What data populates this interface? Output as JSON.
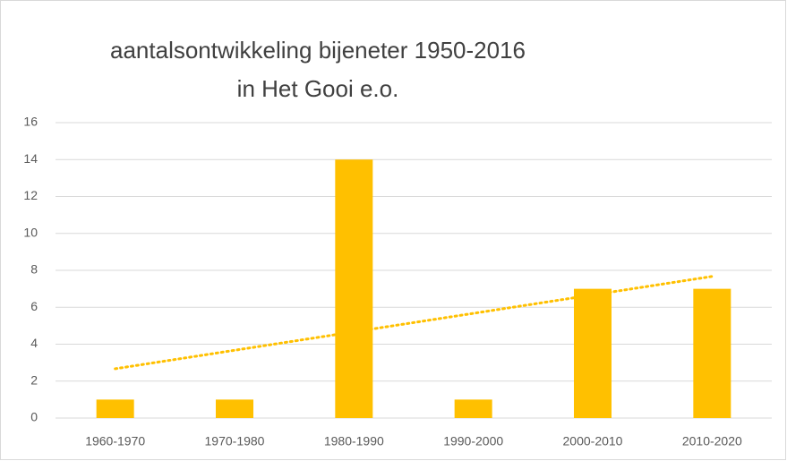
{
  "chart_data": {
    "type": "bar",
    "title": [
      "aantalsontwikkeling bijeneter 1950-2016",
      "in Het Gooi e.o."
    ],
    "categories": [
      "1960-1970",
      "1970-1980",
      "1980-1990",
      "1990-2000",
      "2000-2010",
      "2010-2020"
    ],
    "values": [
      1,
      1,
      14,
      1,
      7,
      7
    ],
    "color": "#ffc000",
    "trendline": {
      "values": [
        2.67,
        7.67
      ],
      "color": "#ffc000",
      "style": "dotted"
    },
    "ylim": [
      0,
      16
    ],
    "yticks": [
      0,
      2,
      4,
      6,
      8,
      10,
      12,
      14,
      16
    ],
    "grid": true
  }
}
